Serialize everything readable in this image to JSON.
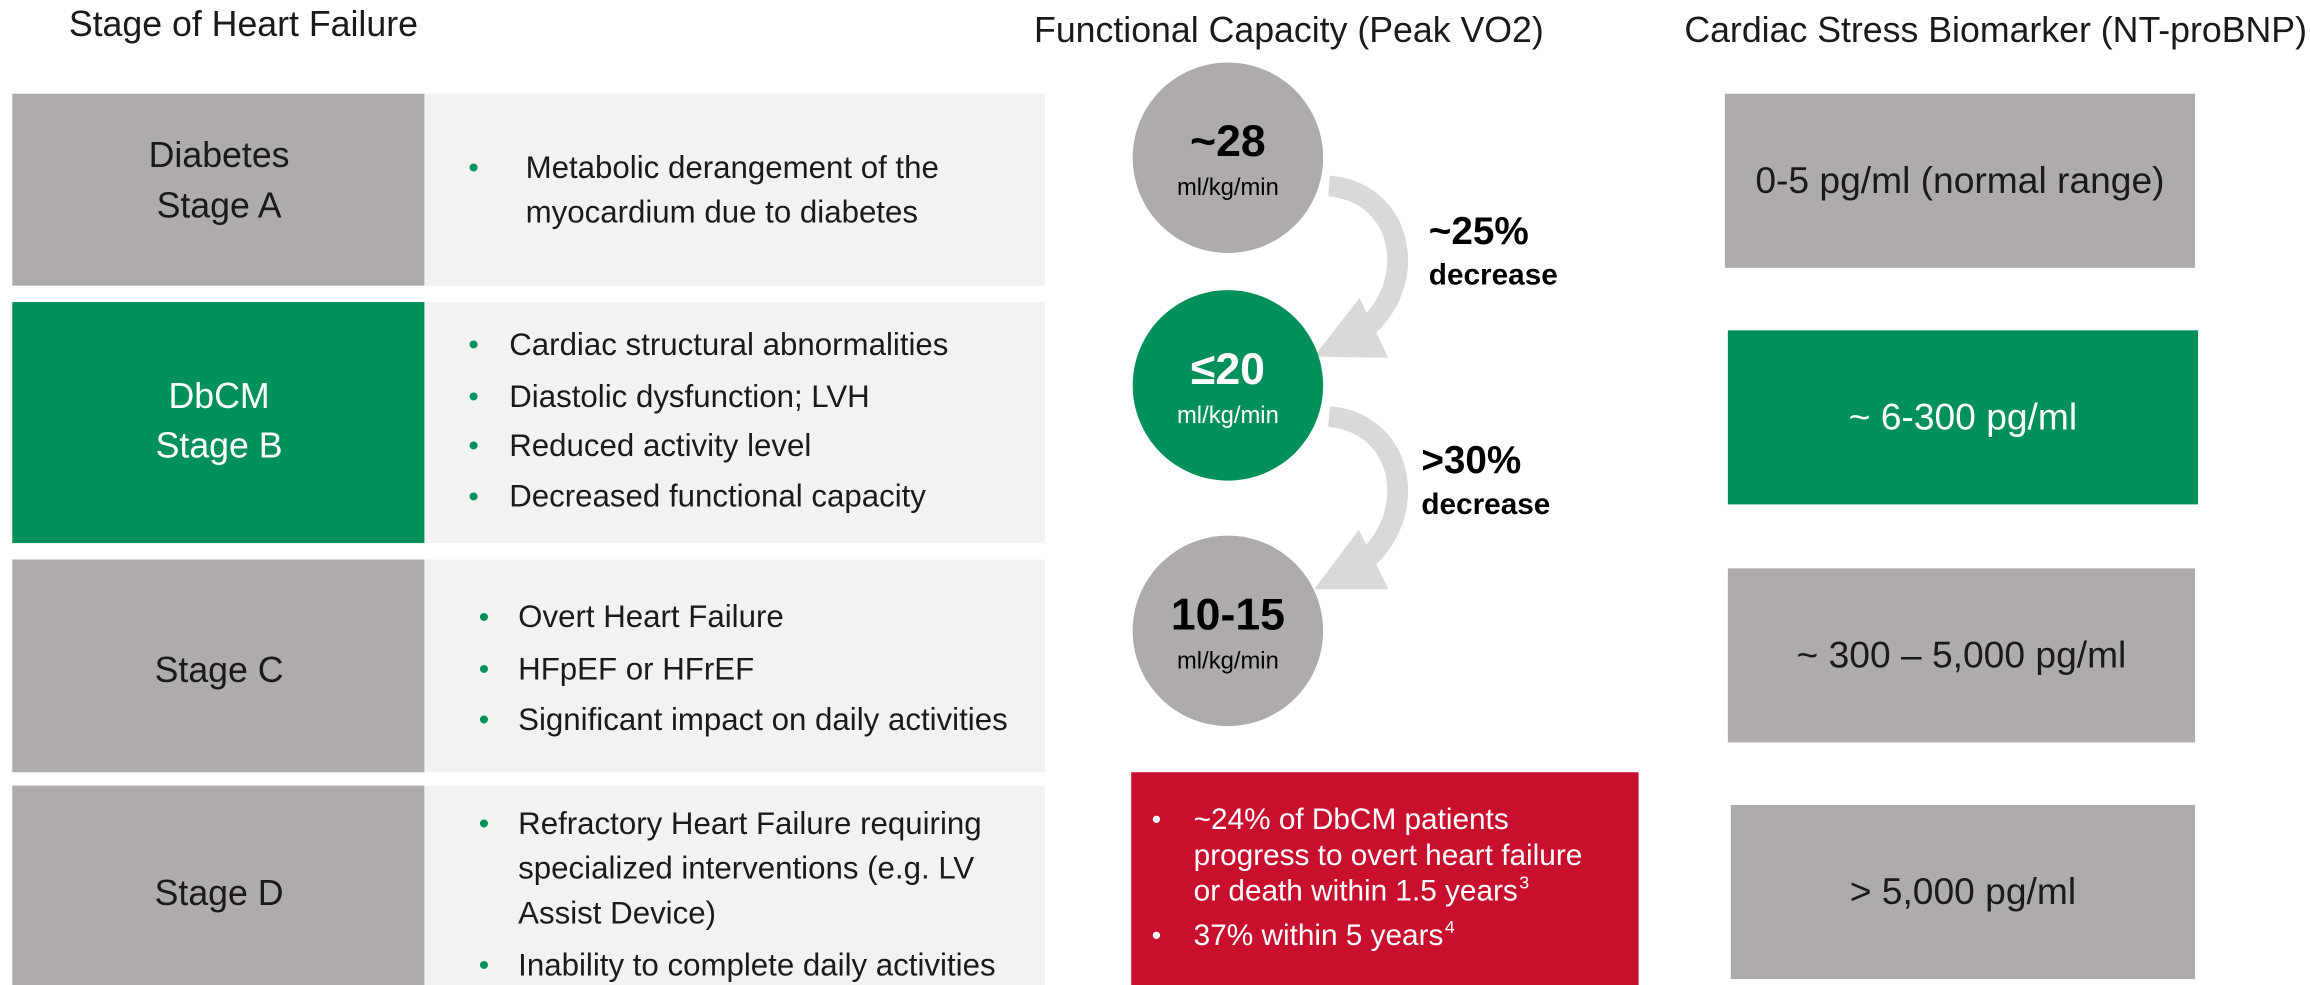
{
  "headers": {
    "stage": "Stage of Heart Failure",
    "capacity": "Functional Capacity (Peak VO2)",
    "biomarker": "Cardiac Stress Biomarker (NT-proBNP)"
  },
  "stages": [
    {
      "label": [
        "Diabetes",
        "Stage A"
      ],
      "bullets": [
        [
          "Metabolic derangement of the",
          "myocardium due to diabetes"
        ]
      ]
    },
    {
      "label": [
        "DbCM",
        "Stage B"
      ],
      "bullets": [
        [
          "Cardiac structural abnormalities"
        ],
        [
          "Diastolic dysfunction; LVH"
        ],
        [
          "Reduced activity level"
        ],
        [
          "Decreased functional capacity"
        ]
      ]
    },
    {
      "label": [
        "Stage C"
      ],
      "bullets": [
        [
          "Overt Heart Failure"
        ],
        [
          "HFpEF or HFrEF"
        ],
        [
          "Significant impact on daily activities"
        ]
      ]
    },
    {
      "label": [
        "Stage D"
      ],
      "bullets": [
        [
          "Refractory Heart Failure requiring",
          "specialized interventions (e.g. LV",
          "Assist Device)"
        ],
        [
          "Inability to complete daily activities"
        ]
      ]
    }
  ],
  "capacity": [
    {
      "value": "~28",
      "unit": "ml/kg/min"
    },
    {
      "value": "≤20",
      "unit": "ml/kg/min"
    },
    {
      "value": "10-15",
      "unit": "ml/kg/min"
    }
  ],
  "decreases": [
    {
      "amount": "~25%",
      "label": "decrease"
    },
    {
      "amount": ">30%",
      "label": "decrease"
    }
  ],
  "progression": [
    {
      "lines": [
        "~24% of DbCM patients",
        "progress to overt heart failure",
        "or death within 1.5 years"
      ],
      "ref": "3"
    },
    {
      "lines": [
        "37% within 5 years"
      ],
      "ref": "4"
    }
  ],
  "biomarkers": [
    "0-5 pg/ml (normal range)",
    "~ 6-300 pg/ml",
    "~ 300 – 5,000 pg/ml",
    "> 5,000 pg/ml"
  ]
}
